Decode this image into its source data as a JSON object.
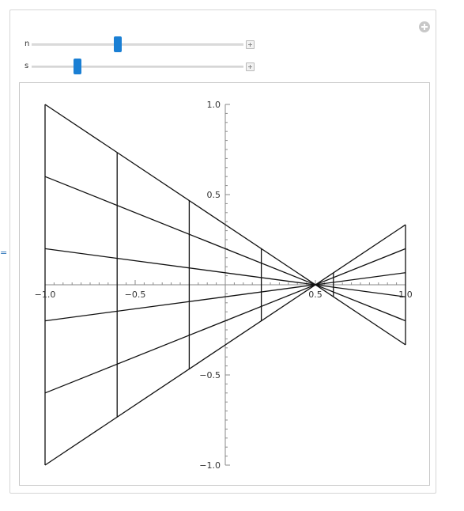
{
  "controls": {
    "n": {
      "label": "n",
      "value_fraction": 0.39
    },
    "s": {
      "label": "s",
      "value_fraction": 0.2
    }
  },
  "side_mark": "=",
  "icons": {
    "options": "plus-circle-icon",
    "expand": "plus-box-icon"
  },
  "chart_data": {
    "type": "line",
    "xlim": [
      -1.0,
      1.0
    ],
    "ylim": [
      -1.0,
      1.0
    ],
    "x_ticks": [
      "-1.0",
      "-0.5",
      "0.5",
      "1.0"
    ],
    "y_ticks": [
      "1.0",
      "0.5",
      "-0.5",
      "-1.0"
    ],
    "x_tick_values": [
      -1.0,
      -0.5,
      0.5,
      1.0
    ],
    "y_tick_values": [
      1.0,
      0.5,
      -0.5,
      -1.0
    ],
    "grid": false,
    "rays": [
      {
        "x": [
          -1.0,
          1.0
        ],
        "y": [
          1.0,
          -0.333
        ]
      },
      {
        "x": [
          -1.0,
          1.0
        ],
        "y": [
          0.6,
          -0.2
        ]
      },
      {
        "x": [
          -1.0,
          1.0
        ],
        "y": [
          0.2,
          -0.067
        ]
      },
      {
        "x": [
          -1.0,
          1.0
        ],
        "y": [
          -0.2,
          0.067
        ]
      },
      {
        "x": [
          -1.0,
          1.0
        ],
        "y": [
          -0.6,
          0.2
        ]
      },
      {
        "x": [
          -1.0,
          1.0
        ],
        "y": [
          -1.0,
          0.333
        ]
      }
    ],
    "verticals": [
      {
        "x": -1.0,
        "y": [
          -1.0,
          1.0
        ]
      },
      {
        "x": -0.6,
        "y": [
          -0.733,
          0.733
        ]
      },
      {
        "x": -0.2,
        "y": [
          -0.467,
          0.467
        ]
      },
      {
        "x": 0.2,
        "y": [
          -0.2,
          0.2
        ]
      },
      {
        "x": 0.6,
        "y": [
          -0.067,
          0.067
        ]
      },
      {
        "x": 1.0,
        "y": [
          -0.333,
          0.333
        ]
      }
    ]
  }
}
